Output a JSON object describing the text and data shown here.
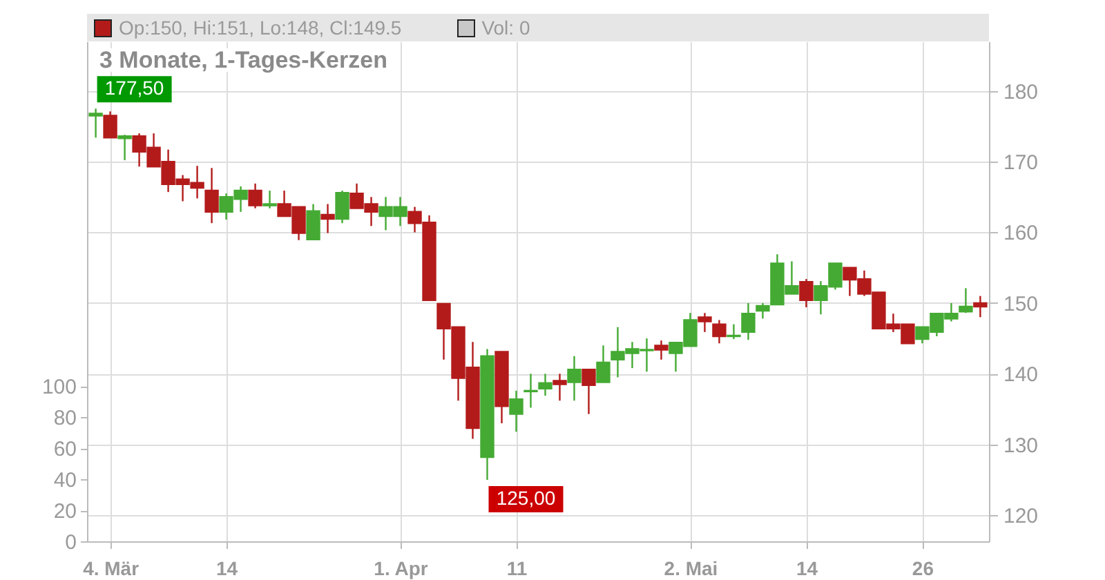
{
  "chart_data": {
    "type": "candlestick",
    "title": "3 Monate, 1-Tages-Kerzen",
    "annotations": [
      "Op:150, Hi:151, Lo:148, Cl:149.5",
      "Vol: 0",
      "177,50",
      "125,00"
    ],
    "categories": [
      null,
      "4. Mär",
      null,
      null,
      null,
      null,
      null,
      null,
      null,
      "14",
      null,
      null,
      null,
      null,
      null,
      null,
      null,
      null,
      null,
      null,
      null,
      "1. Apr",
      null,
      null,
      null,
      null,
      null,
      null,
      null,
      "11",
      null,
      null,
      null,
      null,
      null,
      null,
      null,
      null,
      null,
      null,
      null,
      "2. Mai",
      null,
      null,
      null,
      null,
      null,
      null,
      null,
      "14",
      null,
      null,
      null,
      null,
      null,
      null,
      null,
      "26",
      null,
      null,
      null,
      null
    ],
    "ohlc": [
      [
        176.5,
        177.5,
        173.4,
        176.8
      ],
      [
        176.5,
        177.1,
        173.4,
        173.4
      ],
      [
        173.3,
        173.8,
        170.2,
        173.6
      ],
      [
        173.6,
        174.0,
        169.3,
        171.4
      ],
      [
        172.0,
        174.0,
        169.3,
        169.3
      ],
      [
        170.0,
        171.7,
        165.7,
        166.8
      ],
      [
        167.5,
        168.1,
        164.4,
        166.8
      ],
      [
        167.0,
        169.4,
        164.8,
        166.3
      ],
      [
        165.9,
        169.1,
        161.3,
        162.9
      ],
      [
        162.9,
        165.5,
        161.8,
        165.0
      ],
      [
        164.7,
        166.5,
        162.9,
        165.9
      ],
      [
        165.9,
        166.9,
        163.4,
        163.8
      ],
      [
        163.8,
        165.9,
        163.4,
        164.0
      ],
      [
        164.0,
        165.9,
        162.2,
        162.3
      ],
      [
        163.6,
        163.6,
        158.9,
        159.9
      ],
      [
        159.0,
        164.0,
        159.0,
        163.0
      ],
      [
        162.5,
        164.0,
        159.9,
        161.9
      ],
      [
        161.9,
        165.9,
        161.3,
        165.6
      ],
      [
        165.5,
        166.9,
        163.4,
        163.4
      ],
      [
        164.0,
        165.0,
        160.9,
        162.9
      ],
      [
        162.3,
        165.0,
        160.3,
        163.6
      ],
      [
        162.3,
        165.0,
        160.9,
        163.6
      ],
      [
        162.9,
        163.6,
        160.0,
        161.3
      ],
      [
        161.4,
        162.4,
        150.3,
        150.4
      ],
      [
        149.9,
        149.9,
        142.0,
        146.4
      ],
      [
        146.6,
        146.6,
        136.2,
        139.4
      ],
      [
        140.9,
        144.5,
        130.8,
        132.3
      ],
      [
        128.2,
        143.5,
        125,
        142.5
      ],
      [
        143.1,
        143.1,
        133.0,
        135.4
      ],
      [
        134.3,
        137.6,
        131.8,
        136.4
      ],
      [
        137.5,
        140.0,
        135.2,
        137.6
      ],
      [
        137.9,
        140.0,
        136.9,
        138.7
      ],
      [
        139.0,
        140.0,
        136.2,
        138.5
      ],
      [
        138.8,
        142.5,
        136.2,
        140.6
      ],
      [
        140.6,
        140.6,
        134.3,
        138.4
      ],
      [
        138.8,
        144.0,
        138.8,
        141.6
      ],
      [
        142.0,
        146.6,
        139.5,
        143.1
      ],
      [
        142.9,
        144.5,
        140.8,
        143.5
      ],
      [
        143.3,
        145.0,
        140.3,
        143.4
      ],
      [
        144.0,
        144.7,
        142.0,
        143.4
      ],
      [
        142.9,
        144.4,
        140.3,
        144.4
      ],
      [
        143.9,
        148.6,
        143.9,
        147.6
      ],
      [
        148.0,
        148.6,
        145.9,
        147.4
      ],
      [
        147.0,
        147.6,
        144.3,
        145.3
      ],
      [
        145.3,
        147.0,
        144.9,
        145.4
      ],
      [
        145.9,
        150.0,
        144.8,
        148.5
      ],
      [
        148.9,
        150.0,
        147.8,
        149.6
      ],
      [
        149.8,
        156.9,
        149.8,
        155.6
      ],
      [
        151.3,
        155.9,
        151.3,
        152.4
      ],
      [
        153.0,
        153.4,
        149.4,
        150.4
      ],
      [
        150.4,
        153.1,
        148.4,
        152.4
      ],
      [
        152.3,
        155.6,
        151.9,
        155.6
      ],
      [
        155.0,
        155.0,
        151.0,
        153.3
      ],
      [
        153.4,
        154.6,
        151.0,
        151.3
      ],
      [
        151.5,
        151.5,
        146.4,
        146.4
      ],
      [
        147.0,
        148.5,
        145.9,
        146.4
      ],
      [
        147.0,
        147.0,
        144.3,
        144.3
      ],
      [
        144.9,
        146.6,
        144.3,
        146.6
      ],
      [
        145.9,
        148.5,
        145.3,
        148.5
      ],
      [
        147.8,
        150.0,
        147.4,
        148.5
      ],
      [
        148.8,
        152.1,
        148.6,
        149.5
      ],
      [
        150,
        151,
        148,
        149.5
      ]
    ],
    "colors": [
      "#44aa33",
      "#b31b1b",
      "#44aa33",
      "#b31b1b",
      "#b31b1b",
      "#b31b1b",
      "#b31b1b",
      "#b31b1b",
      "#b31b1b",
      "#44aa33",
      "#44aa33",
      "#b31b1b",
      "#44aa33",
      "#b31b1b",
      "#b31b1b",
      "#44aa33",
      "#b31b1b",
      "#44aa33",
      "#b31b1b",
      "#b31b1b",
      "#44aa33",
      "#44aa33",
      "#b31b1b",
      "#b31b1b",
      "#b31b1b",
      "#b31b1b",
      "#b31b1b",
      "#44aa33",
      "#b31b1b",
      "#44aa33",
      "#44aa33",
      "#44aa33",
      "#b31b1b",
      "#44aa33",
      "#b31b1b",
      "#44aa33",
      "#44aa33",
      "#44aa33",
      "#44aa33",
      "#b31b1b",
      "#44aa33",
      "#44aa33",
      "#b31b1b",
      "#b31b1b",
      "#44aa33",
      "#44aa33",
      "#44aa33",
      "#44aa33",
      "#44aa33",
      "#b31b1b",
      "#44aa33",
      "#44aa33",
      "#b31b1b",
      "#b31b1b",
      "#b31b1b",
      "#b31b1b",
      "#b31b1b",
      "#44aa33",
      "#44aa33",
      "#44aa33",
      "#44aa33",
      "#b31b1b"
    ],
    "ylim": [
      116.3,
      187
    ],
    "yticks": [
      120,
      130,
      140,
      150,
      160,
      170,
      180
    ],
    "y2lim": [
      0,
      321.8
    ],
    "y2ticks": [
      0,
      20,
      40,
      60,
      80,
      100
    ],
    "grid": true
  }
}
